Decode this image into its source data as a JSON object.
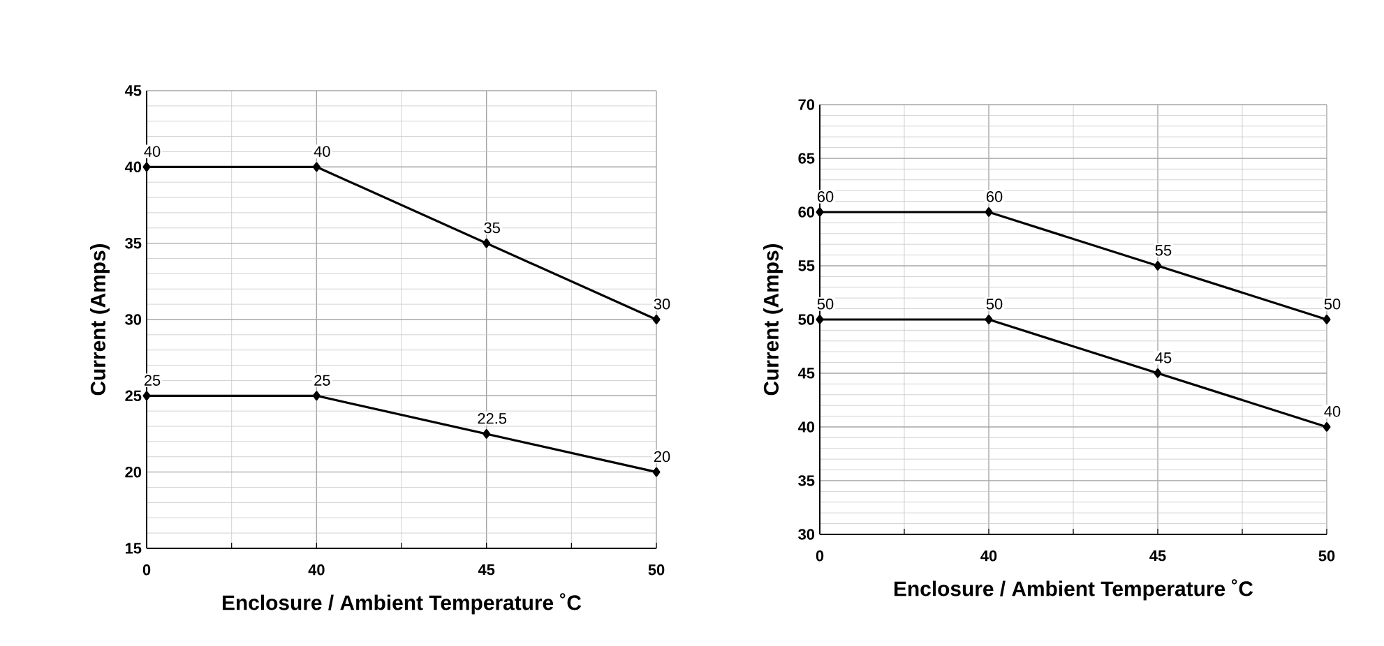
{
  "chart_data": [
    {
      "type": "line",
      "xlabel": "Enclosure / Ambient Temperature ˚C",
      "ylabel": "Current (Amps)",
      "categories": [
        "0",
        "40",
        "45",
        "50"
      ],
      "series": [
        {
          "color": "#000000",
          "values": [
            40,
            40,
            35,
            30
          ]
        },
        {
          "color": "#000000",
          "values": [
            25,
            25,
            22.5,
            20
          ]
        }
      ],
      "ylim": [
        15,
        45
      ],
      "yticks": [
        15,
        20,
        25,
        30,
        35,
        40,
        45
      ],
      "grid": true,
      "marker": "diamond",
      "line_style": "solid",
      "data_labels": true
    },
    {
      "type": "line",
      "xlabel": "Enclosure / Ambient Temperature ˚C",
      "ylabel": "Current (Amps)",
      "categories": [
        "0",
        "40",
        "45",
        "50"
      ],
      "series": [
        {
          "color": "#000000",
          "values": [
            60,
            60,
            55,
            50
          ]
        },
        {
          "color": "#000000",
          "values": [
            50,
            50,
            45,
            40
          ]
        }
      ],
      "ylim": [
        30,
        70
      ],
      "yticks": [
        30,
        35,
        40,
        45,
        50,
        55,
        60,
        65,
        70
      ],
      "grid": true,
      "marker": "diamond",
      "line_style": "solid",
      "data_labels": true
    }
  ]
}
